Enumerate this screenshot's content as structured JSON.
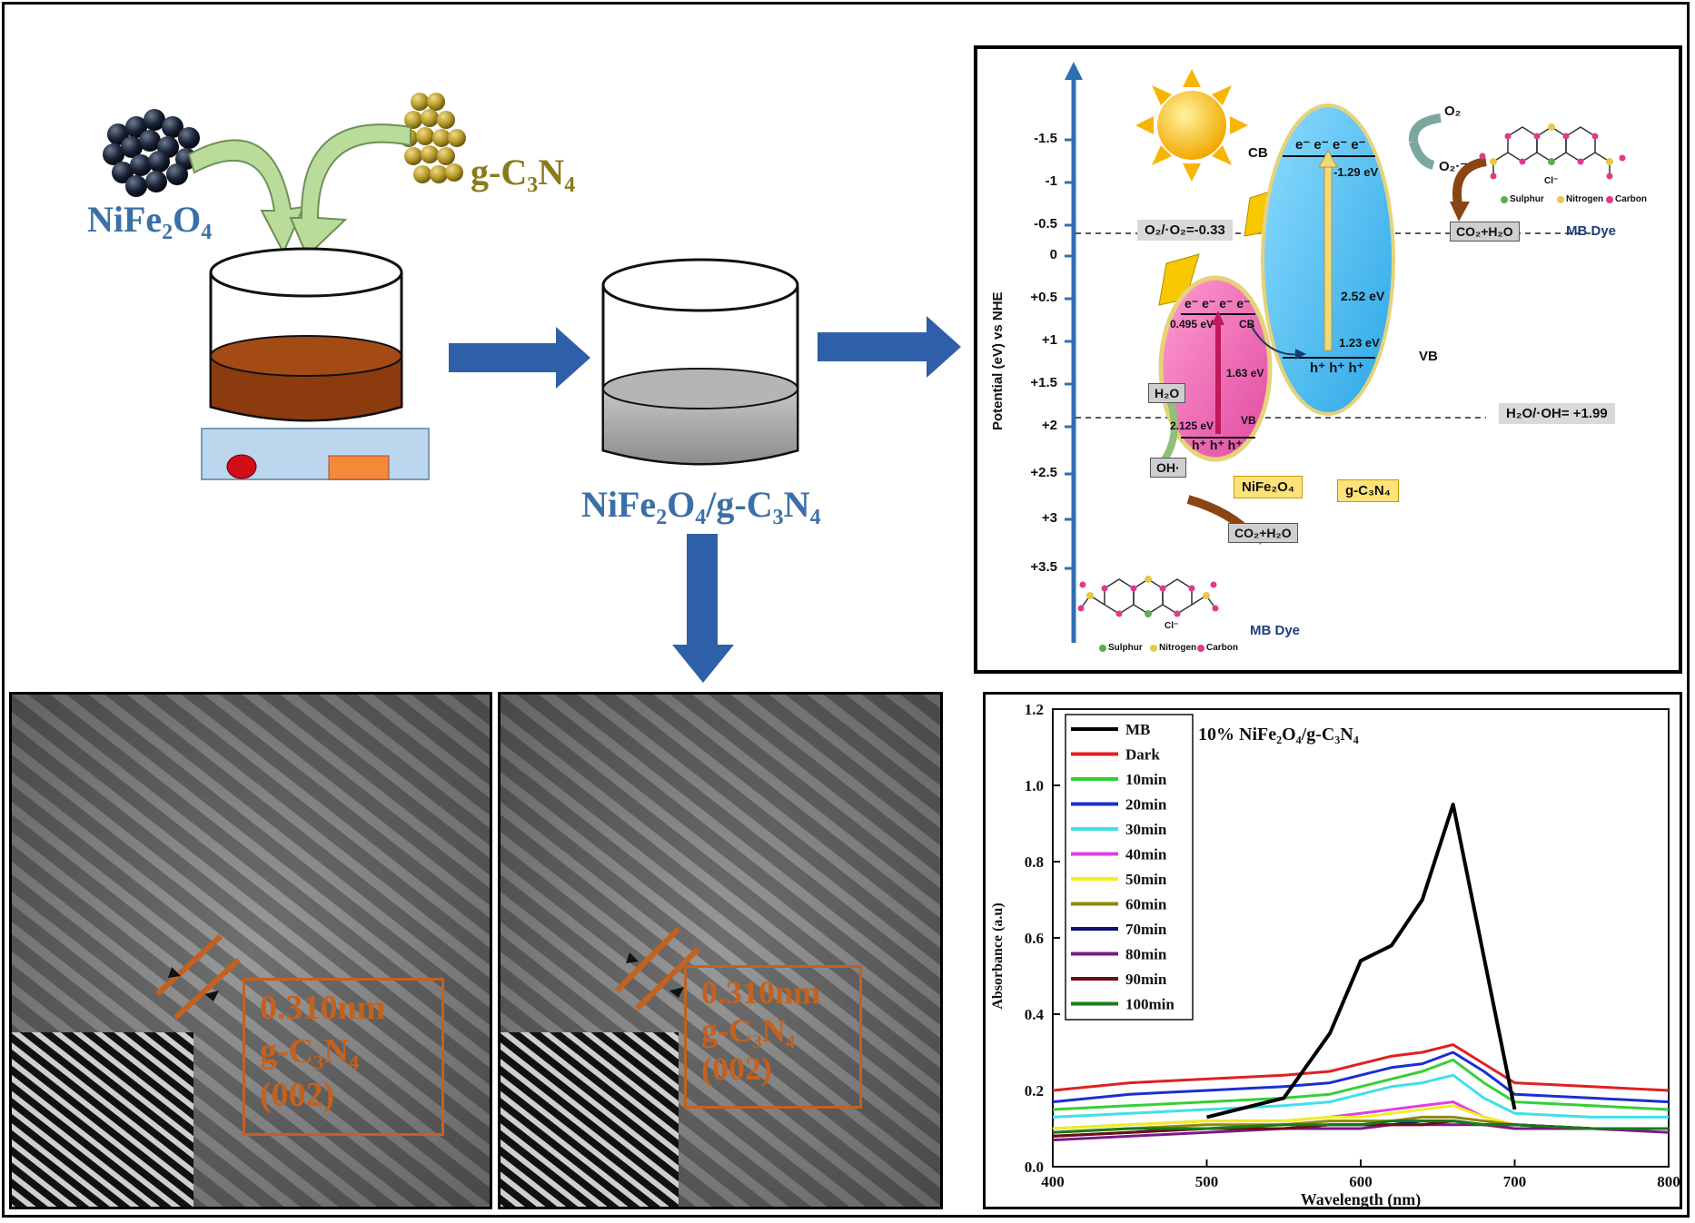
{
  "synthesis": {
    "nife2o4_label": "NiFe₂O₄",
    "gc3n4_label": "g-C₃N₄",
    "composite_label": "NiFe₂O₄/g-C₃N₄"
  },
  "mechanism": {
    "y_axis_title": "Potential (eV) vs NHE",
    "y_ticks": [
      "-1.5",
      "-1",
      "-0.5",
      "0",
      "+0.5",
      "+1",
      "+1.5",
      "+2",
      "+2.5",
      "+3",
      "+3.5"
    ],
    "o2_level_label": "O₂/·O₂=-0.33",
    "h2o_level_label": "H₂O/·OH= +1.99",
    "cb_label": "CB",
    "vb_label": "VB",
    "gcn_cb_value": "-1.29 eV",
    "gcn_gap": "2.52 eV",
    "gcn_vb_value": "1.23 eV",
    "nfo_cb_value": "0.495 eV",
    "nfo_gap": "1.63 eV",
    "nfo_vb_value": "2.125 eV",
    "electrons": "e⁻ e⁻ e⁻ e⁻",
    "holes": "h⁺ h⁺ h⁺",
    "o2": "O₂",
    "o2_radical": "O₂·⁻",
    "co2_h2o": "CO₂+H₂O",
    "h2o": "H₂O",
    "oh": "OH·",
    "nfo_tag": "NiFe₂O₄",
    "gcn_tag": "g-C₃N₄",
    "mb_dye": "MB Dye",
    "chloride": "Cl⁻",
    "legend_sulphur": "Sulphur",
    "legend_nitrogen": "Nitrogen",
    "legend_carbon": "Carbon",
    "colors": {
      "gcn": "#4fc3f7",
      "nfo": "#f06ab0",
      "axis": "#2f6fb0",
      "gold": "#ffd24d"
    }
  },
  "tem": [
    {
      "label_line1": "0.310nm",
      "label_line2": "g-C₃N₄",
      "label_line3": "(002)"
    },
    {
      "label_line1": "0.310nm",
      "label_line2": "g-C₃N₄",
      "label_line3": "(002)"
    }
  ],
  "chart_data": {
    "type": "line",
    "title": "10% NiFe₂O₄/g-C₃N₄",
    "xlabel": "Wavelength (nm)",
    "ylabel": "Absorbance (a.u)",
    "xlim": [
      400,
      800
    ],
    "ylim": [
      0.0,
      1.2
    ],
    "xticks": [
      400,
      500,
      600,
      700,
      800
    ],
    "yticks": [
      0.0,
      0.2,
      0.4,
      0.6,
      0.8,
      1.0,
      1.2
    ],
    "ytick_labels": [
      "0.0",
      "0.2",
      "0.4",
      "0.6",
      "0.8",
      "1.0",
      "1.2"
    ],
    "legend_position": "top-left",
    "x": [
      400,
      450,
      500,
      550,
      580,
      600,
      620,
      640,
      660,
      680,
      700,
      750,
      800
    ],
    "series": [
      {
        "name": "MB",
        "color": "#000000",
        "values": [
          null,
          null,
          0.13,
          0.18,
          0.35,
          0.54,
          0.58,
          0.7,
          0.95,
          0.55,
          0.15,
          null,
          null
        ]
      },
      {
        "name": "Dark",
        "color": "#e02020",
        "values": [
          0.2,
          0.22,
          0.23,
          0.24,
          0.25,
          0.27,
          0.29,
          0.3,
          0.32,
          0.27,
          0.22,
          0.21,
          0.2
        ]
      },
      {
        "name": "10min",
        "color": "#35d035",
        "values": [
          0.15,
          0.16,
          0.17,
          0.18,
          0.19,
          0.21,
          0.23,
          0.25,
          0.28,
          0.22,
          0.17,
          0.16,
          0.15
        ]
      },
      {
        "name": "20min",
        "color": "#1a2fd0",
        "values": [
          0.17,
          0.19,
          0.2,
          0.21,
          0.22,
          0.24,
          0.26,
          0.27,
          0.3,
          0.25,
          0.19,
          0.18,
          0.17
        ]
      },
      {
        "name": "30min",
        "color": "#40e0e8",
        "values": [
          0.13,
          0.14,
          0.15,
          0.16,
          0.17,
          0.19,
          0.21,
          0.22,
          0.24,
          0.18,
          0.14,
          0.13,
          0.13
        ]
      },
      {
        "name": "40min",
        "color": "#e040e0",
        "values": [
          0.1,
          0.11,
          0.12,
          0.12,
          0.13,
          0.14,
          0.15,
          0.16,
          0.17,
          0.13,
          0.11,
          0.1,
          0.1
        ]
      },
      {
        "name": "50min",
        "color": "#f0f020",
        "values": [
          0.1,
          0.11,
          0.12,
          0.12,
          0.13,
          0.13,
          0.14,
          0.15,
          0.16,
          0.13,
          0.11,
          0.1,
          0.1
        ]
      },
      {
        "name": "60min",
        "color": "#8a8a10",
        "values": [
          0.09,
          0.1,
          0.11,
          0.11,
          0.12,
          0.12,
          0.12,
          0.13,
          0.13,
          0.12,
          0.11,
          0.1,
          0.1
        ]
      },
      {
        "name": "70min",
        "color": "#101070",
        "values": [
          0.08,
          0.09,
          0.1,
          0.1,
          0.11,
          0.11,
          0.11,
          0.12,
          0.12,
          0.11,
          0.11,
          0.1,
          0.1
        ]
      },
      {
        "name": "80min",
        "color": "#7a1a8a",
        "values": [
          0.07,
          0.08,
          0.09,
          0.1,
          0.1,
          0.1,
          0.11,
          0.11,
          0.11,
          0.11,
          0.1,
          0.1,
          0.09
        ]
      },
      {
        "name": "90min",
        "color": "#6a1010",
        "values": [
          0.08,
          0.09,
          0.1,
          0.1,
          0.11,
          0.11,
          0.11,
          0.11,
          0.12,
          0.11,
          0.11,
          0.1,
          0.1
        ]
      },
      {
        "name": "100min",
        "color": "#1a7a1a",
        "values": [
          0.09,
          0.1,
          0.1,
          0.11,
          0.11,
          0.11,
          0.12,
          0.12,
          0.12,
          0.11,
          0.11,
          0.1,
          0.1
        ]
      }
    ]
  }
}
